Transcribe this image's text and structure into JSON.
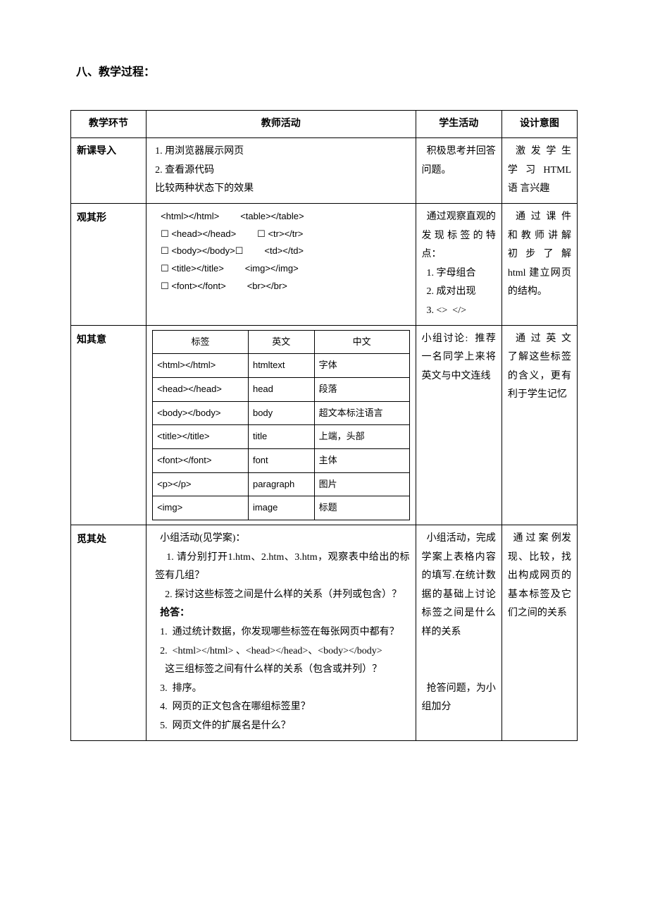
{
  "heading": "八、教学过程：",
  "table": {
    "headers": [
      "教学环节",
      "教师活动",
      "学生活动",
      "设计意图"
    ],
    "col_widths": [
      "105px",
      "375px",
      "120px",
      "105px"
    ],
    "rows": [
      {
        "stage": "新课导入",
        "stage_class": "stage-cell-small",
        "teacher_lines": [
          "1. 用浏览器展示网页",
          "2. 查看源代码",
          "比较两种状态下的效果"
        ],
        "student": "  积极思考并回答问题。",
        "intent": "  激 发 学 生 学 习 HTML 语 言兴趣"
      },
      {
        "stage": "观其形",
        "stage_class": "stage-cell",
        "tags_pairs": [
          [
            "<html></html>",
            "<table></table>"
          ],
          [
            "☐ <head></head>",
            "☐ <tr></tr>"
          ],
          [
            "☐ <body></body>☐",
            "<td></td>"
          ],
          [
            "☐ <title></title>",
            "<img></img>"
          ],
          [
            "☐ <font></font>",
            "<br></br>"
          ]
        ],
        "student_lines": [
          "  通过观察直观的发现标签的特点：",
          "  1. 字母组合",
          "  2. 成对出现",
          "  3. <>  </>"
        ],
        "intent": "  通 过 课 件 和 教 师 讲 解 初 步 了 解 html 建立网页的结构。"
      },
      {
        "stage": "知其意",
        "stage_class": "stage-cell",
        "inner_table": {
          "columns": [
            "标签",
            "英文",
            "中文"
          ],
          "rows": [
            [
              "<html></html>",
              "htmltext",
              "字体"
            ],
            [
              "<head></head>",
              "head",
              "段落"
            ],
            [
              "<body></body>",
              "body",
              "超文本标注语言"
            ],
            [
              "<title></title>",
              "title",
              "上端，头部"
            ],
            [
              "<font></font>",
              "font",
              "主体"
            ],
            [
              "<p></p>",
              "paragraph",
              "图片"
            ],
            [
              "<img>",
              "image",
              "标题"
            ]
          ]
        },
        "student": "小组讨论:  推荐一名同学上来将英文与中文连线",
        "intent": "  通 过 英 文 了解这些标签的含义，更有利于学生记忆"
      },
      {
        "stage": "觅其处",
        "stage_class": "stage-cell",
        "teacher_lines": [
          "  小组活动(见学案)：",
          "    1. 请分别打开1.htm、2.htm、3.htm，观察表中给出的标签有几组？",
          "    2. 探讨这些标签之间是什么样的关系（并列或包含）？",
          "  抢答：",
          "  1.  通过统计数据，你发现哪些标签在每张网页中都有？",
          "  2.  <html></html> 、<head></head>、<body></body>",
          "    这三组标签之间有什么样的关系（包含或并列）？",
          "  3.  排序。",
          "  4.  网页的正文包含在哪组标签里？",
          "  5.  网页文件的扩展名是什么？"
        ],
        "student_lines": [
          "  小组活动，完成学案上表格内容的填写.在统计数据的基础上讨论标签之间是什么样的关系",
          "",
          "",
          "  抢答问题，为小组加分"
        ],
        "intent": "  通 过 案 例发现、比较，找出构成网页的基本标签及它们之间的关系"
      }
    ]
  }
}
